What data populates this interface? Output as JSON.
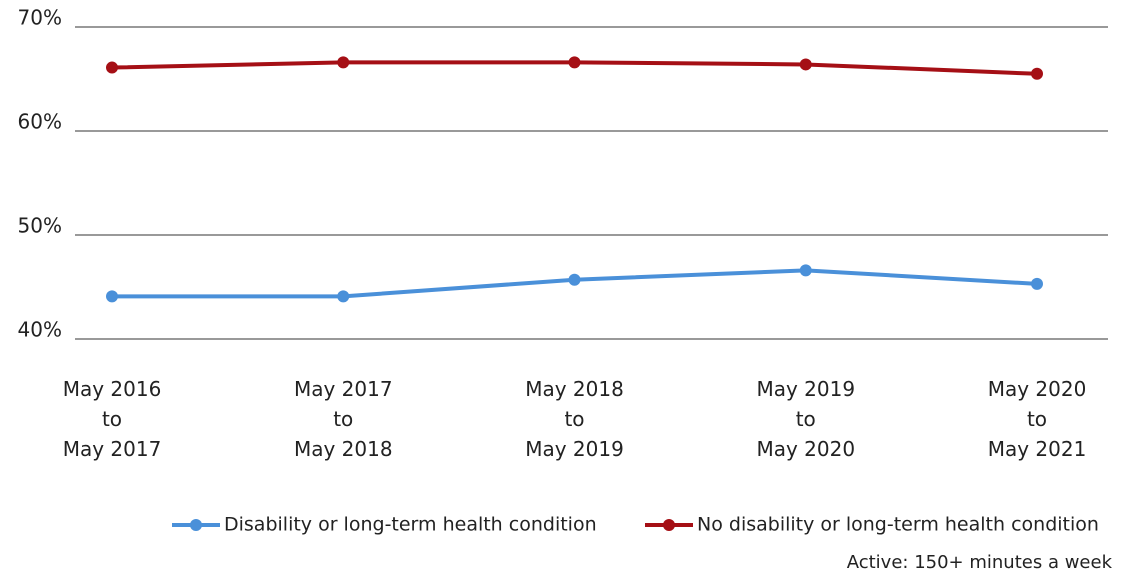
{
  "chart_data": {
    "type": "line",
    "categories": [
      "May 2016\nto\nMay 2017",
      "May 2017\nto\nMay 2018",
      "May 2018\nto\nMay 2019",
      "May 2019\nto\nMay 2020",
      "May 2020\nto\nMay 2021"
    ],
    "series": [
      {
        "name": "Disability or long-term health condition",
        "color": "#4a90d9",
        "values": [
          44.1,
          44.1,
          45.7,
          46.6,
          45.3
        ]
      },
      {
        "name": "No disability or long-term health condition",
        "color": "#a50f15",
        "values": [
          66.1,
          66.6,
          66.6,
          66.4,
          65.5
        ]
      }
    ],
    "ylim": [
      40,
      70
    ],
    "yticks": [
      {
        "value": 40,
        "label": "40%"
      },
      {
        "value": 50,
        "label": "50%"
      },
      {
        "value": 60,
        "label": "60%"
      },
      {
        "value": 70,
        "label": "70%"
      }
    ],
    "grid": true,
    "legend": "bottom",
    "caption": "Active: 150+ minutes a week"
  }
}
